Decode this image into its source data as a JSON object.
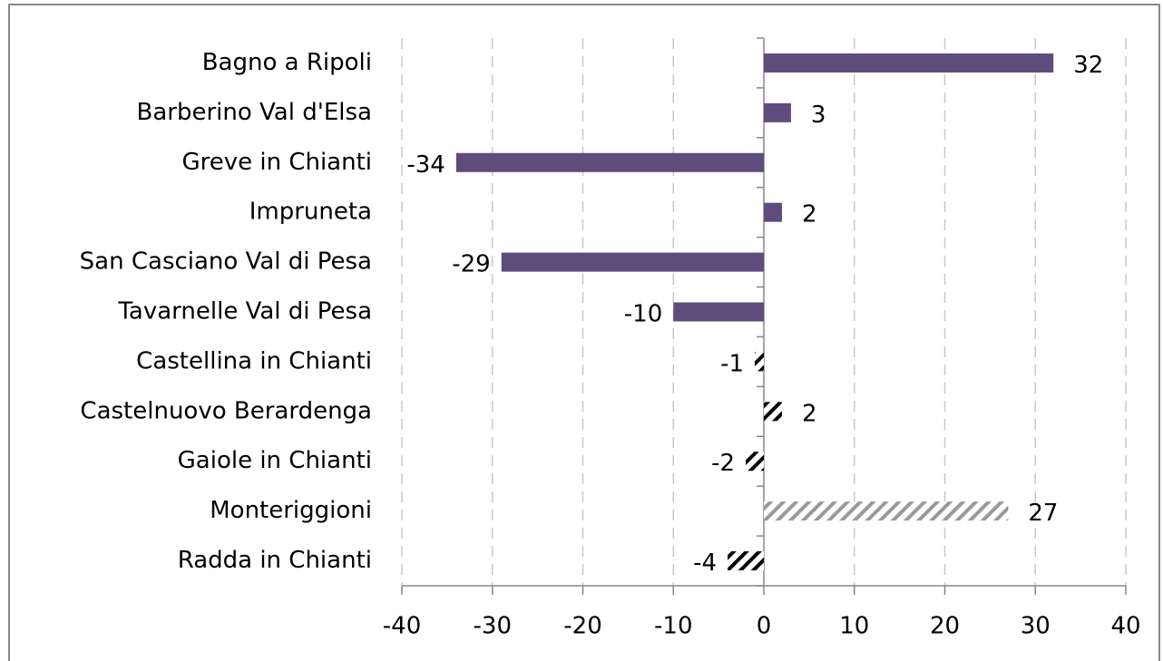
{
  "chart_data": {
    "type": "hbar",
    "categories": [
      "Bagno a Ripoli",
      "Barberino Val d'Elsa",
      "Greve in Chianti",
      "Impruneta",
      "San Casciano Val di Pesa",
      "Tavarnelle Val di Pesa",
      "Castellina in Chianti",
      "Castelnuovo Berardenga",
      "Gaiole in Chianti",
      "Monteriggioni",
      "Radda in Chianti"
    ],
    "values": [
      32,
      3,
      -34,
      2,
      -29,
      -10,
      -1,
      2,
      -2,
      27,
      -4
    ],
    "colors": [
      "#5f4b7c",
      "#5f4b7c",
      "#5f4b7c",
      "#5f4b7c",
      "#5f4b7c",
      "#5f4b7c",
      "#000000",
      "#000000",
      "#000000",
      "#999999",
      "#000000"
    ],
    "patterns": [
      "solid",
      "solid",
      "solid",
      "solid",
      "solid",
      "solid",
      "hatch",
      "hatch",
      "hatch",
      "hatch",
      "hatch"
    ],
    "xlim": [
      -40,
      40
    ],
    "xticks": [
      -40,
      -30,
      -20,
      -10,
      0,
      10,
      20,
      30,
      40
    ],
    "grid": true
  }
}
